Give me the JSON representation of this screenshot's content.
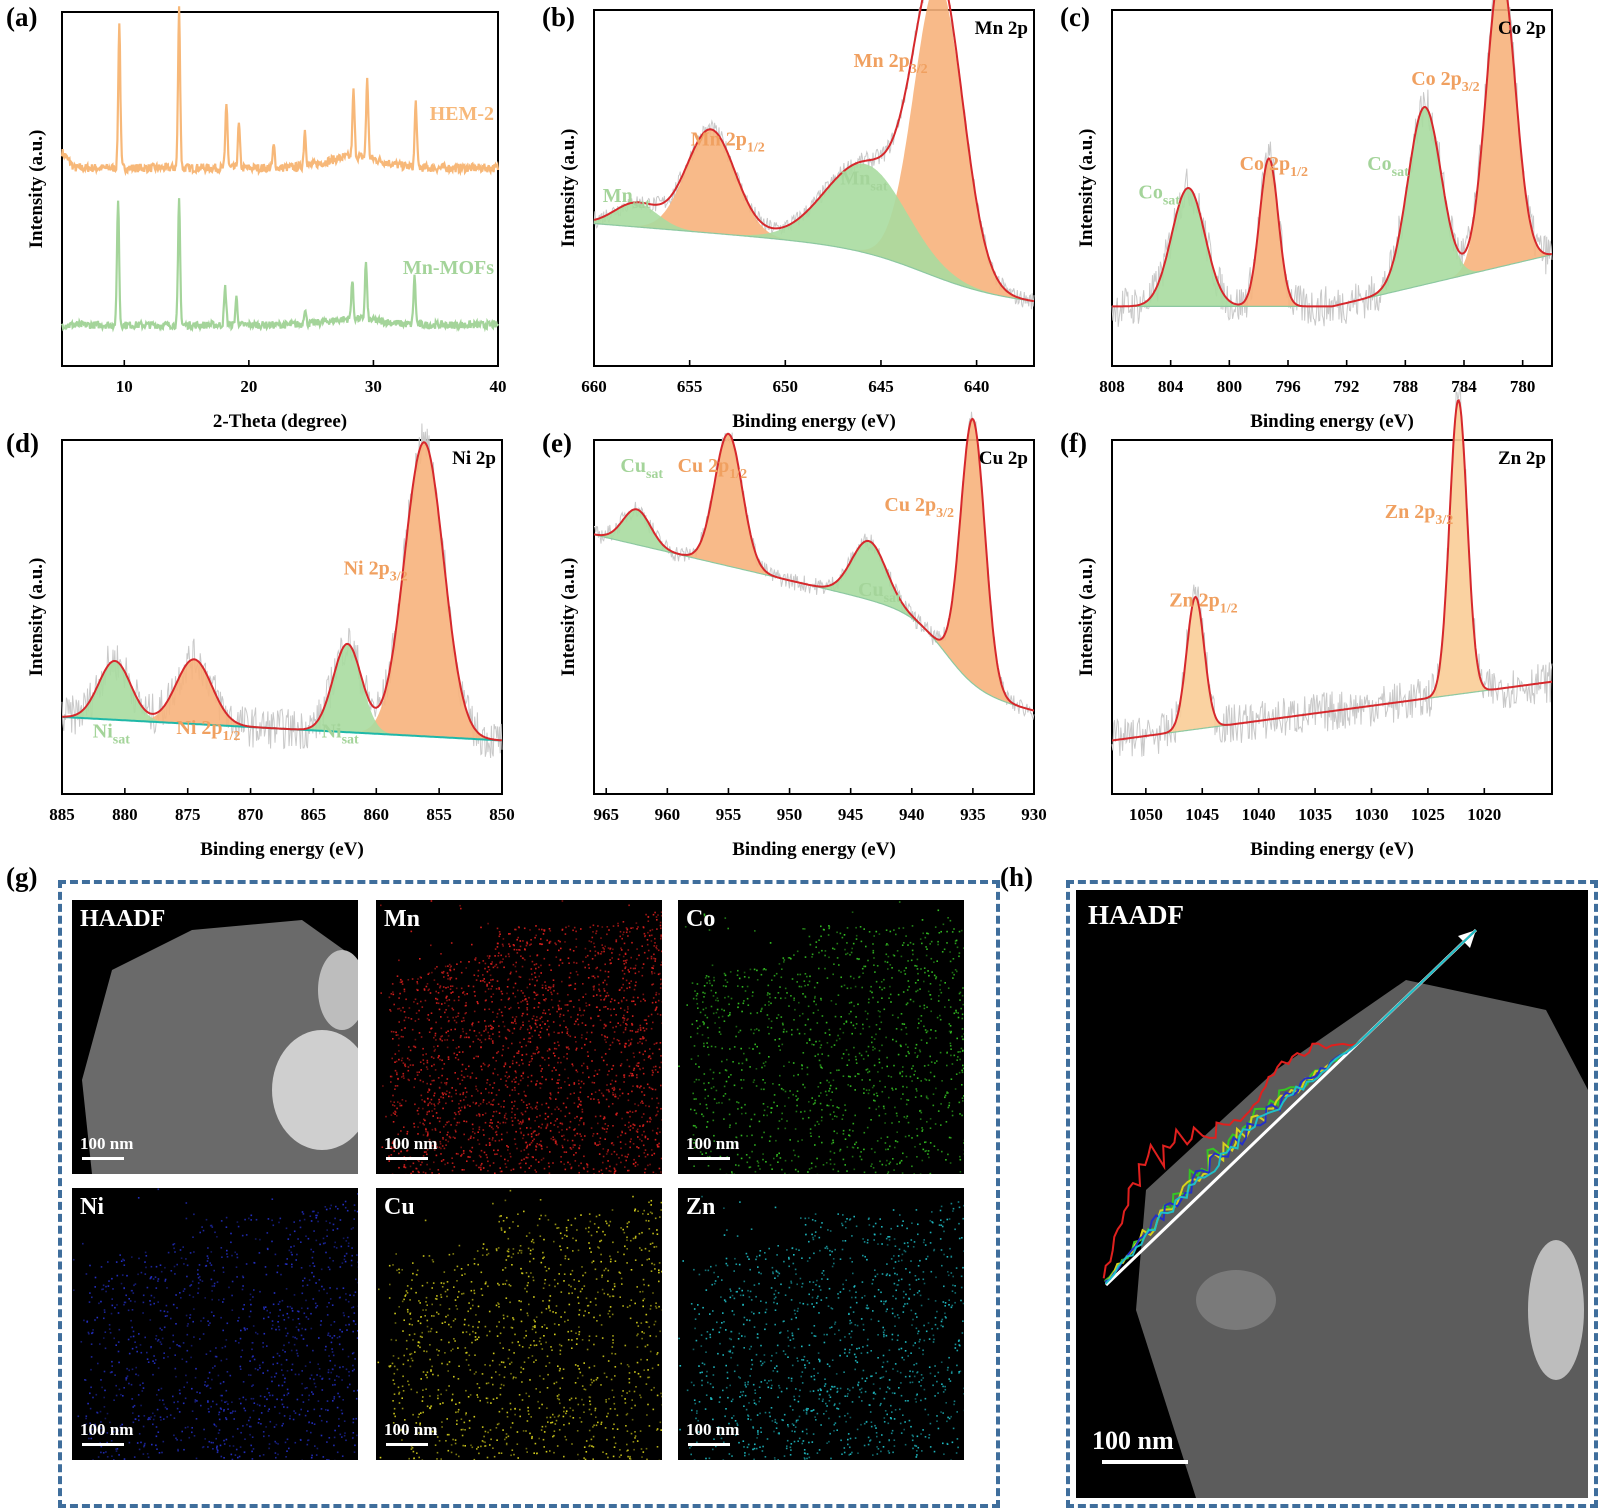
{
  "panels": {
    "a": "(a)",
    "b": "(b)",
    "c": "(c)",
    "d": "(d)",
    "e": "(e)",
    "f": "(f)",
    "g": "(g)",
    "h": "(h)"
  },
  "chart_data": [
    {
      "id": "a",
      "type": "line",
      "xlabel": "2-Theta (degree)",
      "ylabel": "Intensity (a.u.)",
      "xlim": [
        5,
        40
      ],
      "xticks": [
        "10",
        "20",
        "30",
        "40"
      ],
      "series": [
        {
          "name": "HEM-2",
          "color": "#f7b879",
          "peaks": [
            [
              9.6,
              1.0
            ],
            [
              14.4,
              1.1
            ],
            [
              18.2,
              0.45
            ],
            [
              19.2,
              0.3
            ],
            [
              22.0,
              0.15
            ],
            [
              24.5,
              0.25
            ],
            [
              28.4,
              0.45
            ],
            [
              29.5,
              0.55
            ],
            [
              33.4,
              0.45
            ]
          ]
        },
        {
          "name": "Mn-MOFs",
          "color": "#a4d49a",
          "peaks": [
            [
              9.5,
              1.0
            ],
            [
              14.4,
              1.0
            ],
            [
              18.1,
              0.3
            ],
            [
              19.0,
              0.22
            ],
            [
              24.5,
              0.12
            ],
            [
              28.3,
              0.3
            ],
            [
              29.4,
              0.45
            ],
            [
              33.3,
              0.38
            ]
          ]
        }
      ],
      "annotations": [
        "HEM-2",
        "Mn-MOFs"
      ]
    },
    {
      "id": "b",
      "type": "area",
      "element": "Mn 2p",
      "xlabel": "Binding energy (eV)",
      "ylabel": "Intensity (a.u.)",
      "xlim": [
        660,
        637
      ],
      "xticks": [
        "660",
        "655",
        "650",
        "645",
        "640"
      ],
      "peaks": [
        {
          "label": "Mn 2p3/2",
          "center": 642.0,
          "height": 1.0,
          "width": 1.8,
          "kind": "main"
        },
        {
          "label": "Mn 2p1/2",
          "center": 653.9,
          "height": 0.35,
          "width": 1.8,
          "kind": "main"
        },
        {
          "label": "Mnsat",
          "center": 645.8,
          "height": 0.3,
          "width": 3.0,
          "kind": "sat"
        },
        {
          "label": "Mnsat",
          "center": 657.8,
          "height": 0.08,
          "width": 1.6,
          "kind": "sat"
        }
      ],
      "labels": [
        {
          "main": "Mn 2p",
          "sub": "3/2",
          "color": "#f0a060"
        },
        {
          "main": "Mn 2p",
          "sub": "1/2",
          "color": "#f0a060"
        },
        {
          "main": "Mn",
          "sub": "sat",
          "color": "#a4d49a"
        },
        {
          "main": "Mn",
          "sub": "sat",
          "color": "#a4d49a"
        }
      ]
    },
    {
      "id": "c",
      "type": "area",
      "element": "Co 2p",
      "xlabel": "Binding energy (eV)",
      "ylabel": "Intensity (a.u.)",
      "xlim": [
        808,
        778
      ],
      "xticks": [
        "808",
        "804",
        "800",
        "796",
        "792",
        "788",
        "784",
        "780"
      ],
      "peaks": [
        {
          "label": "Co 2p3/2",
          "center": 781.5,
          "height": 1.0,
          "width": 1.4,
          "kind": "main"
        },
        {
          "label": "Co 2p1/2",
          "center": 797.3,
          "height": 0.5,
          "width": 0.9,
          "kind": "main"
        },
        {
          "label": "Cosat",
          "center": 786.7,
          "height": 0.6,
          "width": 1.6,
          "kind": "sat"
        },
        {
          "label": "Cosat",
          "center": 802.8,
          "height": 0.4,
          "width": 1.6,
          "kind": "sat"
        }
      ],
      "labels": [
        {
          "main": "Co 2p",
          "sub": "3/2",
          "color": "#f0a060"
        },
        {
          "main": "Co 2p",
          "sub": "1/2",
          "color": "#f0a060"
        },
        {
          "main": "Co",
          "sub": "sat",
          "color": "#a4d49a"
        },
        {
          "main": "Co",
          "sub": "sat",
          "color": "#a4d49a"
        }
      ]
    },
    {
      "id": "d",
      "type": "area",
      "element": "Ni 2p",
      "xlabel": "Binding energy (eV)",
      "ylabel": "Intensity (a.u.)",
      "xlim": [
        885,
        850
      ],
      "xticks": [
        "885",
        "880",
        "875",
        "870",
        "865",
        "860",
        "855",
        "850"
      ],
      "peaks": [
        {
          "label": "Ni 2p3/2",
          "center": 856.2,
          "height": 1.0,
          "width": 2.2,
          "kind": "main"
        },
        {
          "label": "Ni 2p1/2",
          "center": 874.5,
          "height": 0.22,
          "width": 2.0,
          "kind": "main"
        },
        {
          "label": "Nisat",
          "center": 862.3,
          "height": 0.3,
          "width": 1.6,
          "kind": "sat"
        },
        {
          "label": "Nisat",
          "center": 880.8,
          "height": 0.2,
          "width": 1.8,
          "kind": "sat"
        }
      ],
      "labels": [
        {
          "main": "Ni 2p",
          "sub": "3/2",
          "color": "#f0a060"
        },
        {
          "main": "Ni 2p",
          "sub": "1/2",
          "color": "#f0a060"
        },
        {
          "main": "Ni",
          "sub": "sat",
          "color": "#a4d49a"
        },
        {
          "main": "Ni",
          "sub": "sat",
          "color": "#a4d49a"
        }
      ]
    },
    {
      "id": "e",
      "type": "area",
      "element": "Cu 2p",
      "xlabel": "Binding energy (eV)",
      "ylabel": "Intensity (a.u.)",
      "xlim": [
        966,
        930
      ],
      "xticks": [
        "965",
        "960",
        "955",
        "950",
        "945",
        "940",
        "935",
        "930"
      ],
      "peaks": [
        {
          "label": "Cu 2p3/2",
          "center": 935.0,
          "height": 0.9,
          "width": 1.4,
          "kind": "main"
        },
        {
          "label": "Cu 2p1/2",
          "center": 955.0,
          "height": 0.45,
          "width": 1.6,
          "kind": "main"
        },
        {
          "label": "Cusat",
          "center": 943.5,
          "height": 0.2,
          "width": 2.0,
          "kind": "sat"
        },
        {
          "label": "Cusat",
          "center": 962.5,
          "height": 0.12,
          "width": 1.6,
          "kind": "sat"
        }
      ],
      "labels": [
        {
          "main": "Cu 2p",
          "sub": "3/2",
          "color": "#f0a060"
        },
        {
          "main": "Cu 2p",
          "sub": "1/2",
          "color": "#f0a060"
        },
        {
          "main": "Cu",
          "sub": "sat",
          "color": "#a4d49a"
        },
        {
          "main": "Cu",
          "sub": "sat",
          "color": "#a4d49a"
        }
      ]
    },
    {
      "id": "f",
      "type": "area",
      "element": "Zn 2p",
      "xlabel": "Binding energy (eV)",
      "ylabel": "Intensity (a.u.)",
      "xlim": [
        1053,
        1014
      ],
      "xticks": [
        "1050",
        "1045",
        "1040",
        "1035",
        "1030",
        "1025",
        "1020"
      ],
      "peaks": [
        {
          "label": "Zn 2p3/2",
          "center": 1022.3,
          "height": 1.0,
          "width": 1.1,
          "kind": "main"
        },
        {
          "label": "Zn 2p1/2",
          "center": 1045.6,
          "height": 0.45,
          "width": 1.1,
          "kind": "main"
        }
      ],
      "labels": [
        {
          "main": "Zn 2p",
          "sub": "3/2",
          "color": "#f0a060"
        },
        {
          "main": "Zn 2p",
          "sub": "1/2",
          "color": "#f0a060"
        }
      ]
    }
  ],
  "maps": {
    "tiles": [
      {
        "label": "HAADF",
        "scale": "100 nm",
        "color": "#ffffff"
      },
      {
        "label": "Mn",
        "scale": "100 nm",
        "color": "#e0201e"
      },
      {
        "label": "Co",
        "scale": "100 nm",
        "color": "#35c524"
      },
      {
        "label": "Ni",
        "scale": "100 nm",
        "color": "#2430c8"
      },
      {
        "label": "Cu",
        "scale": "100 nm",
        "color": "#d8d21c"
      },
      {
        "label": "Zn",
        "scale": "100 nm",
        "color": "#1fc0c8"
      }
    ],
    "linescan": {
      "label": "HAADF",
      "scale": "100 nm",
      "line_colors": [
        "#e0201e",
        "#35c524",
        "#d8d21c",
        "#2430c8",
        "#1fc0c8"
      ]
    }
  }
}
